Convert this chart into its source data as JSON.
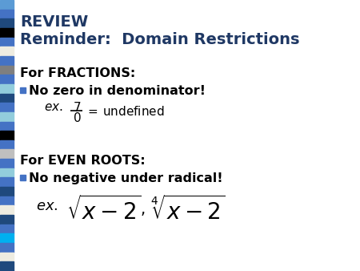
{
  "bg_color": "#ffffff",
  "sidebar_colors": [
    "#5b9bd5",
    "#4472c4",
    "#1f497d",
    "#000000",
    "#4472c4",
    "#eeece1",
    "#4472c4",
    "#7f7f7f",
    "#4472c4",
    "#92cddc",
    "#1f497d",
    "#4472c4",
    "#92cddc",
    "#4472c4",
    "#000000",
    "#4472c4",
    "#bfbfbf",
    "#4472c4",
    "#92cddc",
    "#4472c4",
    "#1f497d",
    "#4472c4",
    "#eeece1",
    "#1f497d",
    "#4472c4",
    "#00b0f0",
    "#4472c4",
    "#eeece1",
    "#1f497d"
  ],
  "title1": "REVIEW",
  "title2": "Reminder:  Domain Restrictions",
  "title_color": "#1f3864",
  "section1_header": "For FRACTIONS:",
  "section1_bullet": "No zero in denominator!",
  "section2_header": "For EVEN ROOTS:",
  "section2_bullet": "No negative under radical!",
  "bullet_color": "#4472c4",
  "text_color": "#000000",
  "figsize": [
    4.5,
    3.38
  ],
  "dpi": 100
}
